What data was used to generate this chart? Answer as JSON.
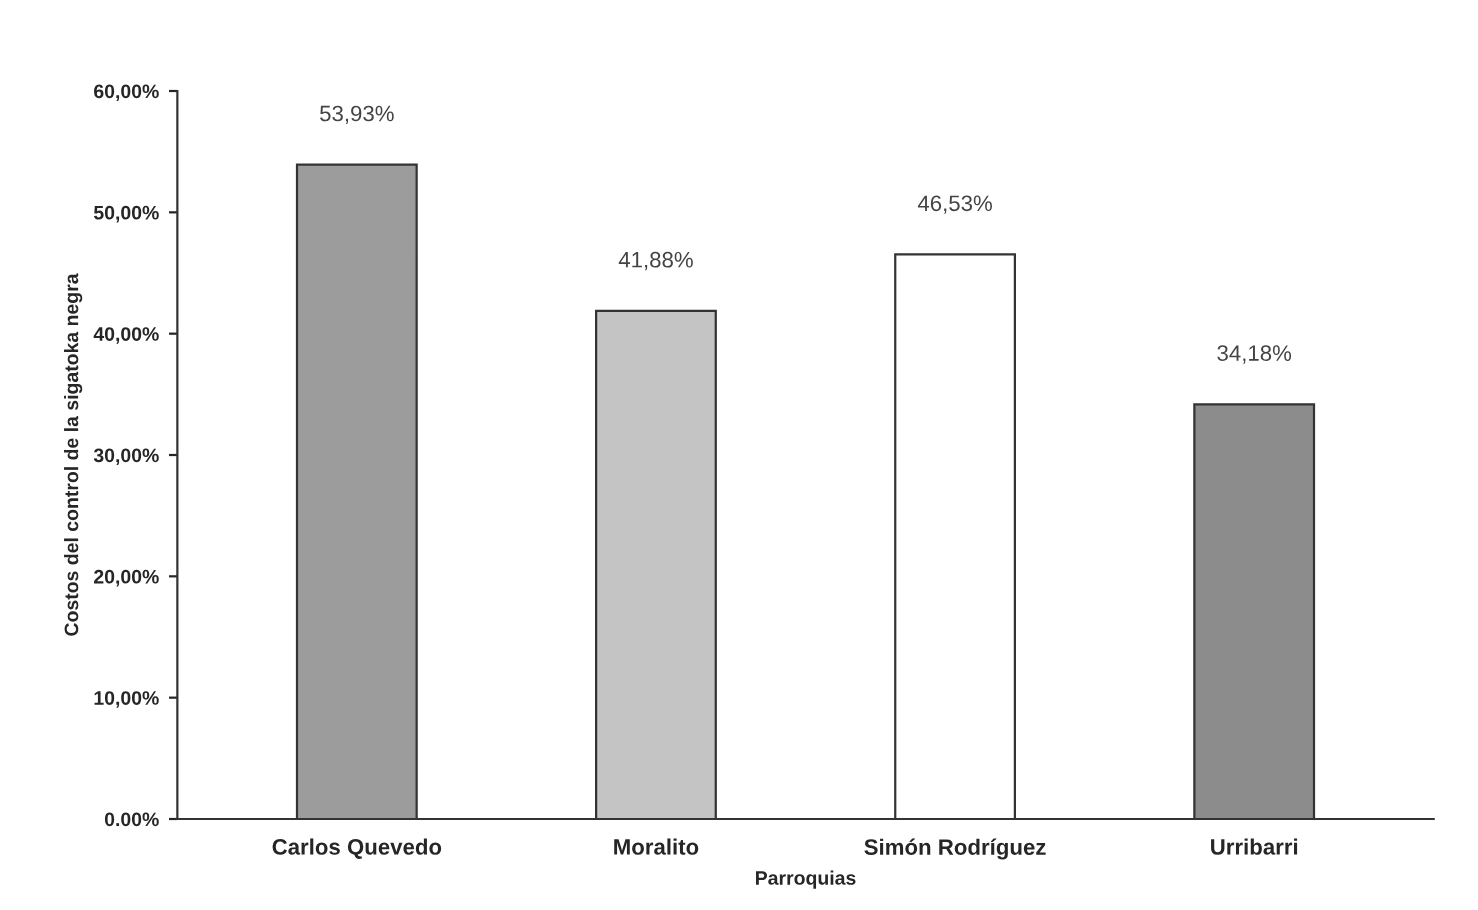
{
  "chart_data": {
    "type": "bar",
    "xlabel": "Parroquias",
    "ylabel": "Costos del control de la sigatoka negra",
    "categories": [
      "Carlos Quevedo",
      "Moralito",
      "Simón Rodríguez",
      "Urribarri"
    ],
    "values": [
      53.93,
      41.88,
      46.53,
      34.18
    ],
    "colors": [
      "#9c9c9c",
      "#c4c4c4",
      "#ffffff",
      "#8c8c8c"
    ],
    "value_labels": [
      "53,93%",
      "41,88%",
      "46,53%",
      "34,18%"
    ],
    "ylim": [
      0,
      60
    ],
    "yticks": [
      {
        "value": 0,
        "label": "0.00%"
      },
      {
        "value": 10,
        "label": "10,00%"
      },
      {
        "value": 20,
        "label": "20,00%"
      },
      {
        "value": 30,
        "label": "30,00%"
      },
      {
        "value": 40,
        "label": "40,00%"
      },
      {
        "value": 50,
        "label": "50,00%"
      },
      {
        "value": 60,
        "label": "60,00%"
      }
    ],
    "grid": false,
    "legend": false
  }
}
